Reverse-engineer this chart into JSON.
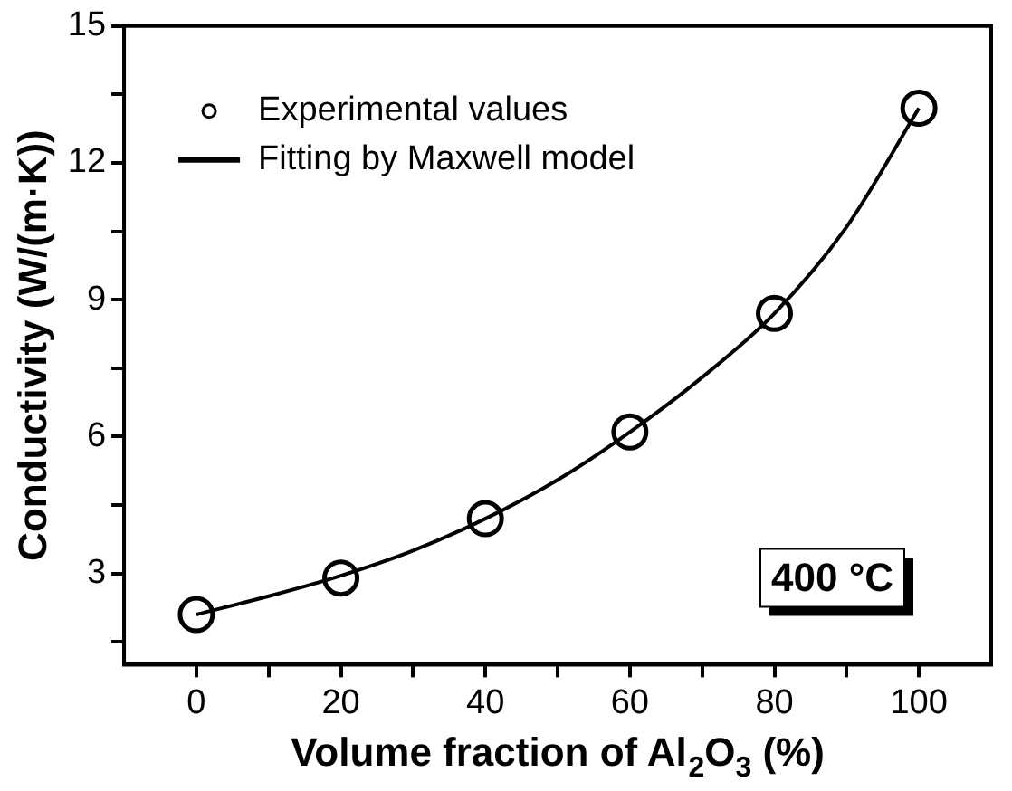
{
  "chart_data": {
    "type": "scatter",
    "xlabel": "Volume fraction of Al$_{2}$O$_{3}$ (%)",
    "ylabel": "Conductivity (W/(m·K))",
    "xlim": [
      -10,
      110
    ],
    "xticks": [
      0,
      {
        "value": 10,
        "label": null
      },
      20,
      {
        "value": 30,
        "label": null
      },
      40,
      {
        "value": 50,
        "label": null
      },
      60,
      {
        "value": 70,
        "label": null
      },
      80,
      {
        "value": 90,
        "label": null
      },
      100
    ],
    "ylim": [
      1,
      15
    ],
    "yticks": [
      {
        "value": 1.5,
        "label": null
      },
      3,
      {
        "value": 4.5,
        "label": null
      },
      6,
      {
        "value": 7.5,
        "label": null
      },
      9,
      {
        "value": 10.5,
        "label": null
      },
      12,
      {
        "value": 13.5,
        "label": null
      },
      15
    ],
    "legend": "top left",
    "marker": "circle",
    "annotations": [
      "400 °C"
    ],
    "series": [
      {
        "name": "Experimental values",
        "color": "#000000",
        "x": [
          0,
          20,
          40,
          60,
          80,
          100
        ],
        "values": [
          2.1,
          2.9,
          4.2,
          6.1,
          8.7,
          13.2
        ]
      },
      {
        "type": "line",
        "name": "Fitting by Maxwell model",
        "color": "#000000",
        "marker": "none",
        "x": [
          0,
          10,
          20,
          30,
          40,
          50,
          60,
          70,
          80,
          90,
          100
        ],
        "values": [
          2.1,
          2.5,
          2.95,
          3.5,
          4.2,
          5.05,
          6.1,
          7.3,
          8.7,
          10.6,
          13.2
        ]
      }
    ]
  }
}
